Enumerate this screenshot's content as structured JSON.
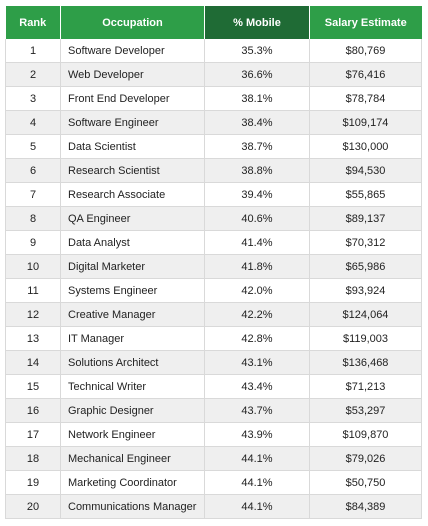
{
  "table": {
    "headers": {
      "rank": "Rank",
      "occupation": "Occupation",
      "mobile": "% Mobile",
      "salary": "Salary Estimate"
    },
    "rows": [
      {
        "rank": "1",
        "occupation": "Software Developer",
        "mobile": "35.3%",
        "salary": "$80,769"
      },
      {
        "rank": "2",
        "occupation": "Web Developer",
        "mobile": "36.6%",
        "salary": "$76,416"
      },
      {
        "rank": "3",
        "occupation": "Front End Developer",
        "mobile": "38.1%",
        "salary": "$78,784"
      },
      {
        "rank": "4",
        "occupation": "Software Engineer",
        "mobile": "38.4%",
        "salary": "$109,174"
      },
      {
        "rank": "5",
        "occupation": "Data Scientist",
        "mobile": "38.7%",
        "salary": "$130,000"
      },
      {
        "rank": "6",
        "occupation": "Research Scientist",
        "mobile": "38.8%",
        "salary": "$94,530"
      },
      {
        "rank": "7",
        "occupation": "Research Associate",
        "mobile": "39.4%",
        "salary": "$55,865"
      },
      {
        "rank": "8",
        "occupation": "QA Engineer",
        "mobile": "40.6%",
        "salary": "$89,137"
      },
      {
        "rank": "9",
        "occupation": "Data Analyst",
        "mobile": "41.4%",
        "salary": "$70,312"
      },
      {
        "rank": "10",
        "occupation": "Digital Marketer",
        "mobile": "41.8%",
        "salary": "$65,986"
      },
      {
        "rank": "11",
        "occupation": "Systems Engineer",
        "mobile": "42.0%",
        "salary": "$93,924"
      },
      {
        "rank": "12",
        "occupation": "Creative Manager",
        "mobile": "42.2%",
        "salary": "$124,064"
      },
      {
        "rank": "13",
        "occupation": "IT Manager",
        "mobile": "42.8%",
        "salary": "$119,003"
      },
      {
        "rank": "14",
        "occupation": "Solutions Architect",
        "mobile": "43.1%",
        "salary": "$136,468"
      },
      {
        "rank": "15",
        "occupation": "Technical Writer",
        "mobile": "43.4%",
        "salary": "$71,213"
      },
      {
        "rank": "16",
        "occupation": "Graphic Designer",
        "mobile": "43.7%",
        "salary": "$53,297"
      },
      {
        "rank": "17",
        "occupation": "Network Engineer",
        "mobile": "43.9%",
        "salary": "$109,870"
      },
      {
        "rank": "18",
        "occupation": "Mechanical Engineer",
        "mobile": "44.1%",
        "salary": "$79,026"
      },
      {
        "rank": "19",
        "occupation": "Marketing Coordinator",
        "mobile": "44.1%",
        "salary": "$50,750"
      },
      {
        "rank": "20",
        "occupation": "Communications Manager",
        "mobile": "44.1%",
        "salary": "$84,389"
      }
    ]
  },
  "colors": {
    "header_green": "#2e9e48",
    "header_dark_green": "#1f6b35",
    "row_stripe": "#efefef",
    "grid_line": "#d9d9d9"
  }
}
